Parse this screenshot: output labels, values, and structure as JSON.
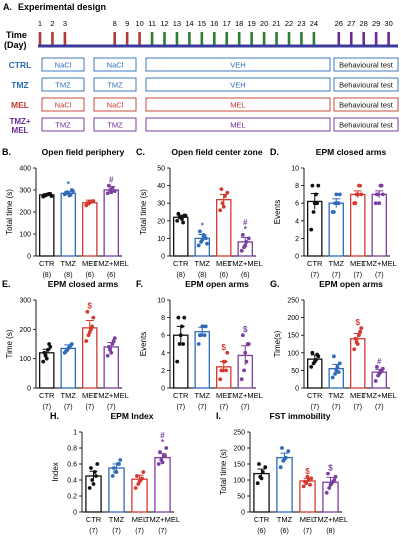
{
  "design": {
    "panel_letter": "A.",
    "title": "Experimental design",
    "axis_label_1": "Time",
    "axis_label_2": "(Day)",
    "days": [
      "1",
      "2",
      "3",
      "",
      "",
      "",
      "8",
      "9",
      "10",
      "11",
      "12",
      "13",
      "14",
      "15",
      "16",
      "17",
      "18",
      "19",
      "20",
      "21",
      "22",
      "23",
      "24",
      "",
      "26",
      "27",
      "28",
      "29",
      "30"
    ],
    "day_colors": {
      "1": "#b03a3a",
      "2": "#b03a3a",
      "3": "#b03a3a",
      "8": "#b03a3a",
      "9": "#b03a3a",
      "10": "#b03a3a",
      "11": "#2e7d32",
      "12": "#2e7d32",
      "13": "#2e7d32",
      "14": "#2e7d32",
      "15": "#2e7d32",
      "16": "#2e7d32",
      "17": "#2e7d32",
      "18": "#2e7d32",
      "19": "#2e7d32",
      "20": "#2e7d32",
      "21": "#2e7d32",
      "22": "#2e7d32",
      "23": "#2e7d32",
      "24": "#2e7d32",
      "26": "#6a2c91",
      "27": "#6a2c91",
      "28": "#6a2c91",
      "29": "#6a2c91",
      "30": "#6a2c91"
    },
    "timeline_color": "#3b3b9e",
    "rows": [
      {
        "label": "CTRL",
        "color": "#2e6bb8",
        "boxes": [
          "NaCl",
          "NaCl",
          "VEH",
          "Behavioural test"
        ]
      },
      {
        "label": "TMZ",
        "color": "#2e6bb8",
        "boxes": [
          "TMZ",
          "TMZ",
          "VEH",
          "Behavioural test"
        ]
      },
      {
        "label": "MEL",
        "color": "#c0392b",
        "boxes": [
          "NaCl",
          "NaCl",
          "MEL",
          "Behavioural test"
        ]
      },
      {
        "label": "TMZ+ MEL",
        "color": "#6a2c91",
        "boxes": [
          "TMZ",
          "TMZ",
          "MEL",
          "Behavioural test"
        ]
      }
    ]
  },
  "colors": {
    "CTR": "#111111",
    "TMZ": "#2e6bb8",
    "MEL": "#d43a2f",
    "TMZ+MEL": "#7b3fa0"
  },
  "chart_data": [
    {
      "id": "B",
      "letter": "B.",
      "title": "Open field periphery",
      "type": "bar",
      "ylabel": "Total time (s)",
      "ylim": [
        0,
        400
      ],
      "ticks": [
        0,
        100,
        200,
        300,
        400
      ],
      "categories": [
        "CTR",
        "TMZ",
        "MEL",
        "TMZ+MEL"
      ],
      "n": [
        "(8)",
        "(8)",
        "(6)",
        "(6)"
      ],
      "values": [
        278,
        285,
        242,
        300
      ],
      "errors": [
        5,
        8,
        12,
        15
      ],
      "points": [
        [
          270,
          275,
          280,
          282,
          276,
          279,
          283,
          272
        ],
        [
          280,
          290,
          275,
          300,
          285,
          288,
          278,
          295
        ],
        [
          230,
          238,
          245,
          250,
          240,
          248
        ],
        [
          285,
          300,
          310,
          295,
          320,
          290
        ]
      ],
      "marks": [
        "",
        "*",
        "",
        "#"
      ]
    },
    {
      "id": "C",
      "letter": "C.",
      "title": "Open field center zone",
      "type": "bar",
      "ylabel": "Total time (s)",
      "ylim": [
        0,
        50
      ],
      "ticks": [
        0,
        10,
        20,
        30,
        40,
        50
      ],
      "categories": [
        "CTR",
        "TMZ",
        "MEL",
        "TMZ+MEL"
      ],
      "n": [
        "(8)",
        "(8)",
        "(6)",
        "(6)"
      ],
      "values": [
        22,
        10,
        32,
        8
      ],
      "errors": [
        1.2,
        2.2,
        3,
        2.5
      ],
      "points": [
        [
          20,
          22,
          21,
          23,
          24,
          22,
          19,
          23
        ],
        [
          6,
          8,
          12,
          10,
          14,
          9,
          11,
          7
        ],
        [
          26,
          30,
          34,
          36,
          38,
          28
        ],
        [
          3,
          5,
          8,
          10,
          12,
          6
        ]
      ],
      "marks": [
        "",
        "*",
        "",
        "#\n*"
      ]
    },
    {
      "id": "D",
      "letter": "D.",
      "title": "EPM closed arms",
      "type": "bar",
      "ylabel": "Events",
      "ylim": [
        0,
        10
      ],
      "ticks": [
        0,
        2,
        4,
        6,
        8,
        10
      ],
      "categories": [
        "CTR",
        "TMZ",
        "MEL",
        "TMZ+MEL"
      ],
      "n": [
        "(7)",
        "(7)",
        "(7)",
        "(7)"
      ],
      "values": [
        6.2,
        6.0,
        7.0,
        7.0
      ],
      "errors": [
        0.9,
        0.5,
        0.4,
        0.4
      ],
      "points": [
        [
          3,
          5,
          7,
          8,
          8,
          6,
          6
        ],
        [
          5,
          6,
          6,
          7,
          5,
          7,
          6
        ],
        [
          6,
          7,
          8,
          7,
          6,
          7,
          8
        ],
        [
          6,
          7,
          8,
          7,
          7,
          6,
          8
        ]
      ],
      "marks": [
        "",
        "",
        "",
        ""
      ]
    },
    {
      "id": "E",
      "letter": "E.",
      "title": "EPM closed arms",
      "type": "bar",
      "ylabel": "Time (s)",
      "ylim": [
        0,
        300
      ],
      "ticks": [
        0,
        100,
        200,
        300
      ],
      "categories": [
        "CTR",
        "TMZ",
        "MEL",
        "TMZ+MEL"
      ],
      "n": [
        "(7)",
        "(7)",
        "(7)",
        "(7)"
      ],
      "values": [
        120,
        135,
        205,
        140
      ],
      "errors": [
        12,
        12,
        25,
        15
      ],
      "points": [
        [
          90,
          110,
          130,
          140,
          120,
          100,
          150
        ],
        [
          120,
          130,
          140,
          150,
          125,
          135,
          145
        ],
        [
          160,
          180,
          200,
          240,
          260,
          190,
          210
        ],
        [
          110,
          130,
          150,
          170,
          140,
          120,
          160
        ]
      ],
      "marks": [
        "",
        "",
        "$",
        ""
      ]
    },
    {
      "id": "F",
      "letter": "F.",
      "title": "EPM open arms",
      "type": "bar",
      "ylabel": "Events",
      "ylim": [
        0,
        10
      ],
      "ticks": [
        0,
        2,
        4,
        6,
        8,
        10
      ],
      "categories": [
        "CTR",
        "TMZ",
        "MEL",
        "TMZ+MEL"
      ],
      "n": [
        "(7)",
        "(7)",
        "(7)",
        "(7)"
      ],
      "values": [
        6.0,
        6.4,
        2.4,
        3.7
      ],
      "errors": [
        1.0,
        0.5,
        0.6,
        1.1
      ],
      "points": [
        [
          3,
          5,
          7,
          8,
          8,
          6,
          5
        ],
        [
          5,
          6,
          7,
          7,
          6,
          7,
          6
        ],
        [
          1,
          2,
          3,
          4,
          2,
          3,
          2
        ],
        [
          1,
          2,
          3,
          5,
          6,
          4,
          5
        ]
      ],
      "marks": [
        "",
        "",
        "$",
        "$"
      ]
    },
    {
      "id": "G",
      "letter": "G.",
      "title": "EPM open arms",
      "type": "bar",
      "ylabel": "Time(s)",
      "ylim": [
        0,
        250
      ],
      "ticks": [
        0,
        50,
        100,
        150,
        200,
        250
      ],
      "categories": [
        "CTR",
        "TMZ",
        "MEL",
        "TMZ+MEL"
      ],
      "n": [
        "(7)",
        "(7)",
        "(7)",
        "(7)"
      ],
      "values": [
        82,
        55,
        140,
        45
      ],
      "errors": [
        12,
        12,
        15,
        8
      ],
      "points": [
        [
          60,
          70,
          80,
          90,
          100,
          75,
          95
        ],
        [
          30,
          40,
          60,
          70,
          90,
          50,
          45
        ],
        [
          110,
          130,
          150,
          170,
          140,
          125,
          160
        ],
        [
          20,
          35,
          45,
          55,
          60,
          40,
          50
        ]
      ],
      "marks": [
        "",
        "",
        "$",
        "#"
      ]
    },
    {
      "id": "H",
      "letter": "H.",
      "title": "EPM Index",
      "type": "bar",
      "ylabel": "Index",
      "ylim": [
        0,
        1.0
      ],
      "ticks": [
        0,
        0.2,
        0.4,
        0.6,
        0.8,
        1.0
      ],
      "categories": [
        "CTR",
        "TMZ",
        "MEL",
        "TMZ+MEL"
      ],
      "n": [
        "(7)",
        "(7)",
        "(7)",
        "(7)"
      ],
      "values": [
        0.45,
        0.55,
        0.41,
        0.68
      ],
      "errors": [
        0.06,
        0.05,
        0.05,
        0.05
      ],
      "points": [
        [
          0.3,
          0.4,
          0.5,
          0.6,
          0.55,
          0.35,
          0.45
        ],
        [
          0.45,
          0.5,
          0.6,
          0.65,
          0.55,
          0.5,
          0.6
        ],
        [
          0.3,
          0.35,
          0.4,
          0.5,
          0.45,
          0.38,
          0.42
        ],
        [
          0.6,
          0.65,
          0.7,
          0.8,
          0.75,
          0.62,
          0.7
        ]
      ],
      "marks": [
        "",
        "",
        "",
        "#\n*"
      ]
    },
    {
      "id": "I",
      "letter": "I.",
      "title": "FST immobility",
      "type": "bar",
      "ylabel": "Total time (s)",
      "ylim": [
        0,
        250
      ],
      "ticks": [
        0,
        50,
        100,
        150,
        200,
        250
      ],
      "categories": [
        "CTR",
        "TMZ",
        "MEL",
        "TMZ+MEL"
      ],
      "n": [
        "(6)",
        "(6)",
        "(7)",
        "(8)"
      ],
      "values": [
        120,
        170,
        97,
        93
      ],
      "errors": [
        14,
        14,
        8,
        15
      ],
      "points": [
        [
          90,
          110,
          125,
          140,
          150,
          105
        ],
        [
          140,
          160,
          170,
          190,
          200,
          165
        ],
        [
          80,
          90,
          100,
          105,
          95,
          110,
          85
        ],
        [
          60,
          75,
          90,
          100,
          120,
          85,
          95,
          110
        ]
      ],
      "marks": [
        "",
        "",
        "$",
        "$"
      ]
    }
  ]
}
